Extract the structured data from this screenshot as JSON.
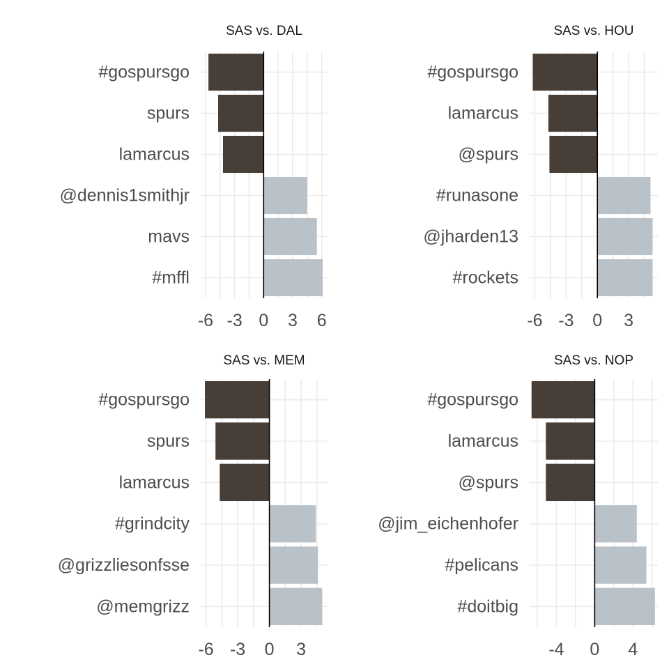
{
  "chart_data": [
    {
      "type": "bar",
      "orientation": "horizontal",
      "title": "SAS vs. DAL",
      "categories": [
        "#gospursgo",
        "spurs",
        "lamarcus",
        "@dennis1smithjr",
        "mavs",
        "#mffl"
      ],
      "values": [
        -5.7,
        -4.7,
        -4.2,
        4.5,
        5.5,
        6.1
      ],
      "xlim": [
        -6.5,
        6.6
      ],
      "xticks": [
        -6,
        -3,
        0,
        3,
        6
      ],
      "xticklabels": [
        "-6",
        "-3",
        "0",
        "3",
        "6"
      ],
      "xlabel": "",
      "ylabel": "",
      "grid": true,
      "legend": "none"
    },
    {
      "type": "bar",
      "orientation": "horizontal",
      "title": "SAS vs. HOU",
      "categories": [
        "#gospursgo",
        "lamarcus",
        "@spurs",
        "#runasone",
        "@jharden13",
        "#rockets"
      ],
      "values": [
        -6.2,
        -4.7,
        -4.6,
        5.1,
        5.3,
        5.3
      ],
      "xlim": [
        -6.5,
        5.8
      ],
      "xticks": [
        -6,
        -3,
        0,
        3
      ],
      "xticklabels": [
        "-6",
        "-3",
        "0",
        "3"
      ],
      "xlabel": "",
      "ylabel": "",
      "grid": true,
      "legend": "none"
    },
    {
      "type": "bar",
      "orientation": "horizontal",
      "title": "SAS vs. MEM",
      "categories": [
        "#gospursgo",
        "spurs",
        "lamarcus",
        "#grindcity",
        "@grizzliesonfsse",
        "@memgrizz"
      ],
      "values": [
        -6.1,
        -5.1,
        -4.7,
        4.4,
        4.6,
        5.0
      ],
      "xlim": [
        -6.5,
        5.5
      ],
      "xticks": [
        -6,
        -3,
        0,
        3
      ],
      "xticklabels": [
        "-6",
        "-3",
        "0",
        "3"
      ],
      "xlabel": "",
      "ylabel": "",
      "grid": true,
      "legend": "none"
    },
    {
      "type": "bar",
      "orientation": "horizontal",
      "title": "SAS vs. NOP",
      "categories": [
        "#gospursgo",
        "lamarcus",
        "@spurs",
        "@jim_eichenhofer",
        "#pelicans",
        "#doitbig"
      ],
      "values": [
        -6.6,
        -5.1,
        -5.1,
        4.4,
        5.4,
        6.3
      ],
      "xlim": [
        -6.8,
        6.6
      ],
      "xticks": [
        -4,
        0,
        4
      ],
      "xticklabels": [
        "-4",
        "0",
        "4"
      ],
      "xlabel": "",
      "ylabel": "",
      "grid": true,
      "legend": "none"
    }
  ],
  "colors": {
    "negative": "#483e38",
    "positive": "#bac2c9",
    "grid": "#ebebeb",
    "zero_line": "#000000",
    "text": "#4d4d4d"
  }
}
